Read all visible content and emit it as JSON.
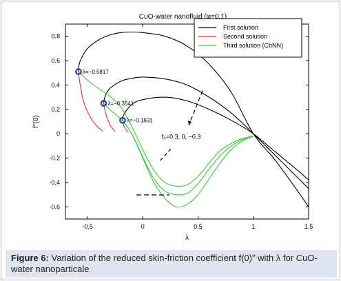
{
  "chart_data": {
    "type": "line",
    "title": "CuO-water nanofluid (φ=0.1)",
    "xlabel": "λ",
    "ylabel": "f′′(0)",
    "xlim": [
      -0.7,
      1.5
    ],
    "ylim": [
      -0.7,
      0.9
    ],
    "xticks": [
      "-0.5",
      "0",
      "0.5",
      "1",
      "1.5"
    ],
    "yticks": [
      "0.8",
      "0.6",
      "0.4",
      "0.2",
      "0",
      "-0.2",
      "-0.4",
      "-0.6"
    ],
    "legend_position": "top-right",
    "series": [
      {
        "name": "First solution",
        "color": "#000000",
        "curves": [
          {
            "x": [
              -0.5817,
              -0.57,
              -0.5,
              -0.4,
              -0.3,
              -0.2,
              -0.1,
              0,
              0.2,
              0.4,
              0.6,
              0.8,
              1.0,
              1.2,
              1.4,
              1.5
            ],
            "y": [
              0.51,
              0.59,
              0.7,
              0.77,
              0.81,
              0.83,
              0.835,
              0.83,
              0.8,
              0.72,
              0.57,
              0.34,
              0.0,
              -0.22,
              -0.47,
              -0.6
            ]
          },
          {
            "x": [
              -0.3541,
              -0.34,
              -0.3,
              -0.2,
              -0.1,
              0,
              0.2,
              0.4,
              0.6,
              0.8,
              1.0,
              1.2,
              1.4,
              1.5
            ],
            "y": [
              0.25,
              0.31,
              0.37,
              0.43,
              0.455,
              0.465,
              0.45,
              0.4,
              0.3,
              0.17,
              0.0,
              -0.18,
              -0.36,
              -0.45
            ]
          },
          {
            "x": [
              -0.1831,
              -0.17,
              -0.1,
              0,
              0.2,
              0.4,
              0.6,
              0.8,
              1.0,
              1.2,
              1.4,
              1.5
            ],
            "y": [
              0.11,
              0.16,
              0.24,
              0.28,
              0.3,
              0.27,
              0.2,
              0.11,
              0.0,
              -0.15,
              -0.3,
              -0.38
            ]
          }
        ]
      },
      {
        "name": "Second  solution",
        "color": "#e53030",
        "curves": [
          {
            "x": [
              -0.5817,
              -0.57,
              -0.54,
              -0.5,
              -0.45,
              -0.4,
              -0.36
            ],
            "y": [
              0.51,
              0.42,
              0.28,
              0.18,
              0.1,
              0.05,
              0.02
            ]
          },
          {
            "x": [
              -0.3541,
              -0.34,
              -0.31,
              -0.28,
              -0.25
            ],
            "y": [
              0.25,
              0.18,
              0.1,
              0.05,
              0.02
            ]
          },
          {
            "x": [
              -0.1831,
              -0.17,
              -0.15,
              -0.13
            ],
            "y": [
              0.11,
              0.06,
              0.03,
              0.01
            ]
          }
        ]
      },
      {
        "name": "Third solution (CbNN)",
        "color": "#33cc33",
        "curves": [
          {
            "x": [
              -0.5817,
              -0.5,
              -0.4,
              -0.3,
              -0.2,
              -0.1,
              0,
              0.1,
              0.2,
              0.3,
              0.4,
              0.5,
              0.6,
              0.7,
              0.8,
              0.9,
              1.0
            ],
            "y": [
              0.51,
              0.44,
              0.37,
              0.31,
              0.22,
              0.06,
              -0.13,
              -0.3,
              -0.4,
              -0.43,
              -0.42,
              -0.35,
              -0.24,
              -0.14,
              -0.08,
              -0.04,
              -0.02
            ]
          },
          {
            "x": [
              -0.3541,
              -0.3,
              -0.2,
              -0.1,
              0,
              0.1,
              0.2,
              0.3,
              0.4,
              0.5,
              0.6,
              0.7,
              0.8,
              0.9,
              1.0
            ],
            "y": [
              0.25,
              0.2,
              0.12,
              0.0,
              -0.19,
              -0.37,
              -0.47,
              -0.5,
              -0.49,
              -0.41,
              -0.29,
              -0.18,
              -0.1,
              -0.05,
              -0.02
            ]
          },
          {
            "x": [
              -0.1831,
              -0.1,
              0,
              0.1,
              0.2,
              0.3,
              0.4,
              0.5,
              0.6,
              0.7,
              0.8,
              0.9,
              1.0
            ],
            "y": [
              0.11,
              0.0,
              -0.2,
              -0.4,
              -0.53,
              -0.6,
              -0.58,
              -0.5,
              -0.37,
              -0.24,
              -0.13,
              -0.06,
              -0.02
            ]
          }
        ]
      }
    ],
    "markers": [
      {
        "x": -0.5817,
        "y": 0.51,
        "label": "λ=−0.5817"
      },
      {
        "x": -0.3541,
        "y": 0.25,
        "label": "λ=−0.3541"
      },
      {
        "x": -0.1831,
        "y": 0.11,
        "label": "λ=−0.1831"
      }
    ],
    "annotations": [
      {
        "text": "f₀=0.3,  0, −0.3",
        "x": 0.17,
        "y": -0.04
      }
    ]
  },
  "caption": {
    "label": "Figure 6:",
    "text": " Variation of the reduced skin-friction coefficient f(0)″ with λ for CuO-water nanoparticale"
  }
}
